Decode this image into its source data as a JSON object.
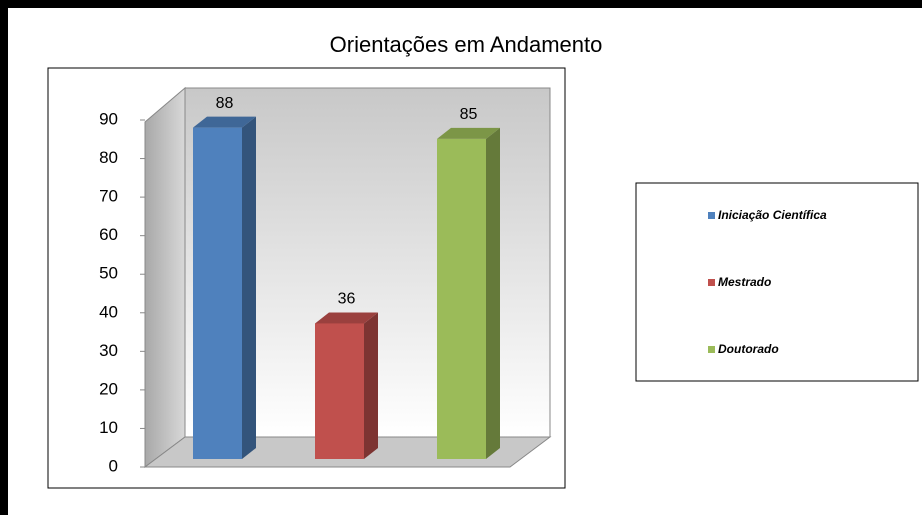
{
  "chart_data": {
    "type": "bar3d",
    "title": "Orientações em Andamento",
    "categories": [
      "Iniciação Científica",
      "Mestrado",
      "Doutorado"
    ],
    "values": [
      88,
      36,
      85
    ],
    "colors": [
      "#4f81bd",
      "#c0504d",
      "#9bbb59"
    ],
    "ylim": [
      0,
      90
    ],
    "yticks": [
      0,
      10,
      20,
      30,
      40,
      50,
      60,
      70,
      80,
      90
    ],
    "legend": "right"
  }
}
